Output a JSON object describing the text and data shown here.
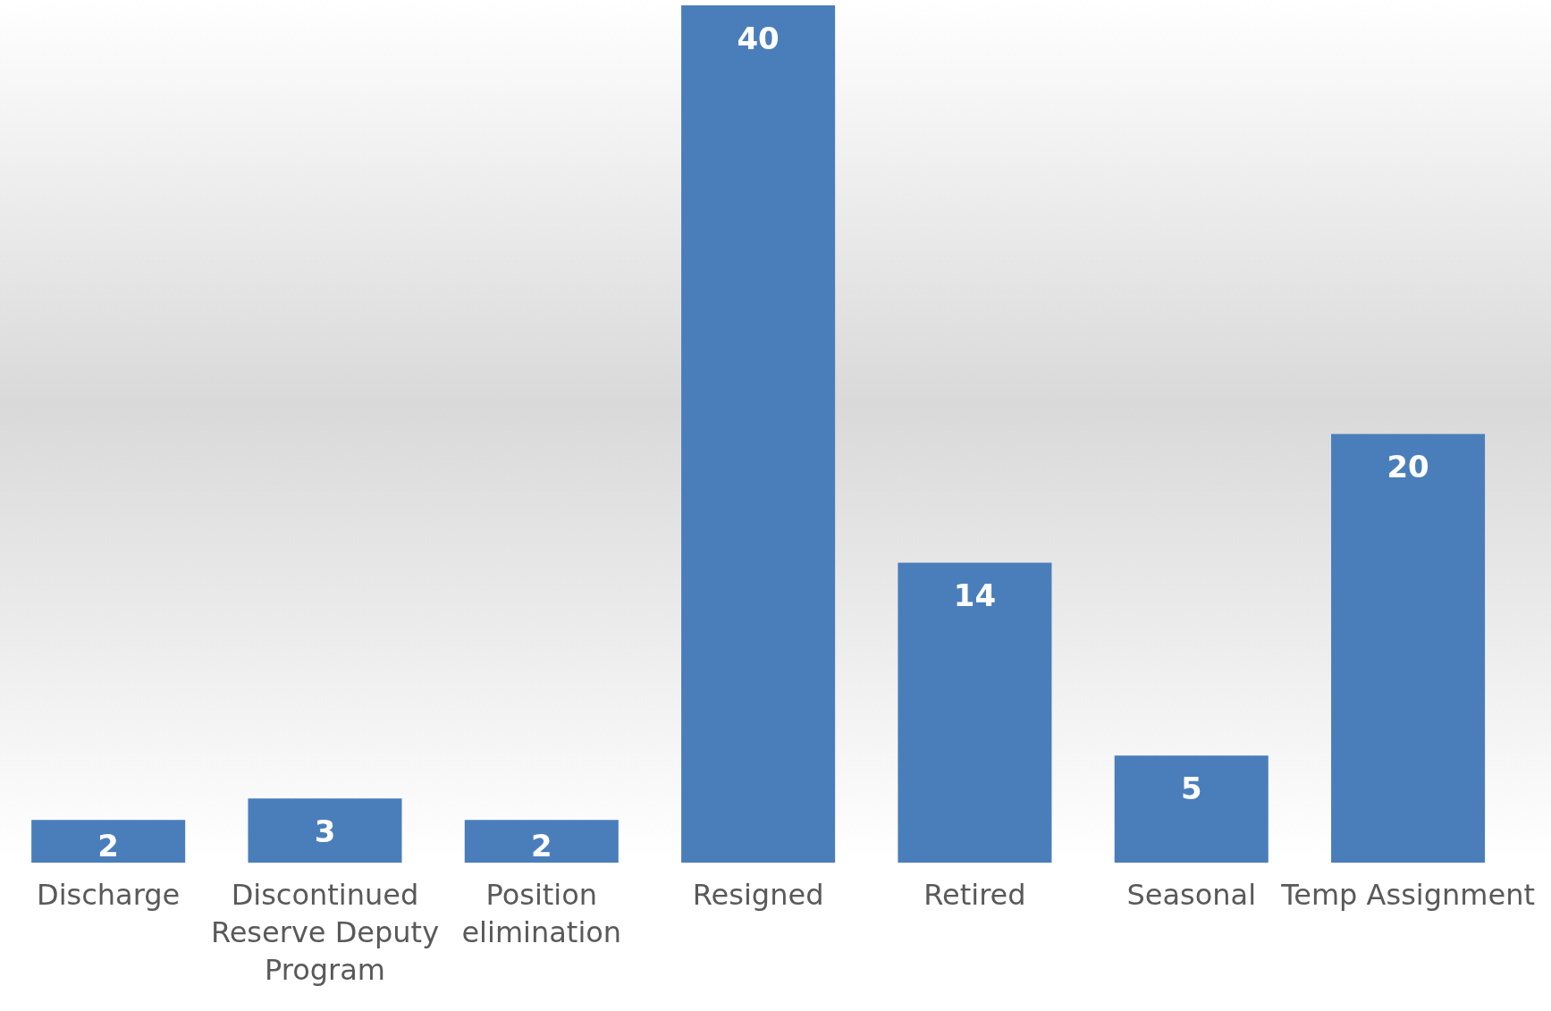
{
  "chart_data": {
    "type": "bar",
    "categories": [
      "Discharge",
      "Discontinued Reserve Deputy Program",
      "Position elimination",
      "Resigned",
      "Retired",
      "Seasonal",
      "Temp Assignment"
    ],
    "values": [
      2,
      3,
      2,
      40,
      14,
      5,
      20
    ],
    "color": "#4a7ebb",
    "data_labels": true,
    "grid": false,
    "legend": false
  }
}
